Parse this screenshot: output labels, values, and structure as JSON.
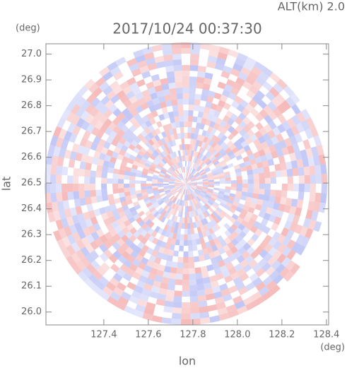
{
  "chart_data": {
    "type": "radar-ppi",
    "title": "2017/10/24 00:37:30",
    "annotation": "ALT(km) 2.0",
    "x_label": "lon",
    "y_label": "lat",
    "x_unit": "(deg)",
    "y_unit": "(deg)",
    "xlim": [
      127.14,
      128.41
    ],
    "ylim": [
      25.95,
      27.04
    ],
    "xticks": [
      127.4,
      127.6,
      127.8,
      {
        "value": 128.0,
        "label": "128.0"
      },
      128.2,
      128.4
    ],
    "yticks": [
      {
        "value": 26.0,
        "label": "26.0"
      },
      26.1,
      26.2,
      26.3,
      26.4,
      26.5,
      26.6,
      26.7,
      26.8,
      26.9,
      {
        "value": 27.0,
        "label": "27.0"
      }
    ]
  }
}
